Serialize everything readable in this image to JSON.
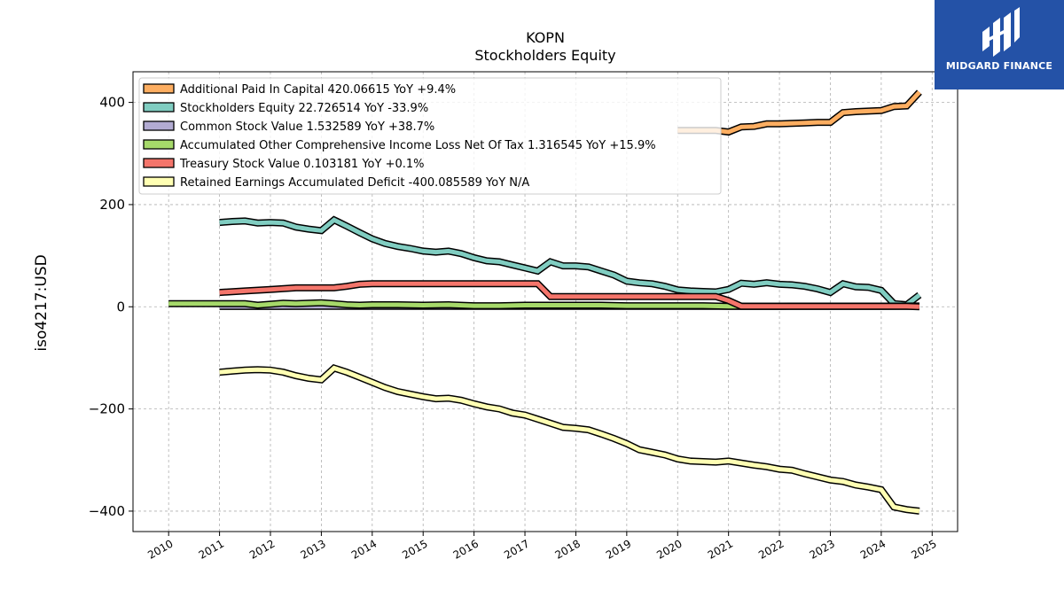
{
  "chart_data": {
    "type": "line",
    "title": "KOPN",
    "subtitle": "Stockholders  Equity",
    "ylabel": "iso4217:USD",
    "xlim": [
      2009.3,
      2025.5
    ],
    "ylim": [
      -440,
      460
    ],
    "yticks": [
      -400,
      -200,
      0,
      200,
      400
    ],
    "yticklabels": [
      "−400",
      "−200",
      "0",
      "200",
      "400"
    ],
    "xticks": [
      2010,
      2011,
      2012,
      2013,
      2014,
      2015,
      2016,
      2017,
      2018,
      2019,
      2020,
      2021,
      2022,
      2023,
      2024,
      2025
    ],
    "xticklabels": [
      "2010",
      "2011",
      "2012",
      "2013",
      "2014",
      "2015",
      "2016",
      "2017",
      "2018",
      "2019",
      "2020",
      "2021",
      "2022",
      "2023",
      "2024",
      "2025"
    ],
    "grid": true,
    "legend_position": "upper-left",
    "series": [
      {
        "name": "Additional Paid In Capital",
        "legend_label": "Additional Paid In Capital  420.06615 YoY +9.4%",
        "color": "#fdae61",
        "x": [
          2020.0,
          2020.25,
          2020.5,
          2020.75,
          2021.0,
          2021.25,
          2021.5,
          2021.75,
          2022.0,
          2022.25,
          2022.5,
          2022.75,
          2023.0,
          2023.25,
          2023.5,
          2023.75,
          2024.0,
          2024.25,
          2024.5,
          2024.75
        ],
        "values": [
          345,
          345,
          345,
          345,
          342,
          352,
          353,
          358,
          358,
          359,
          360,
          361,
          361,
          380,
          382,
          383,
          384,
          392,
          393,
          420
        ]
      },
      {
        "name": "Stockholders Equity",
        "legend_label": "Stockholders Equity  22.726514 YoY -33.9%",
        "color": "#80cdc1",
        "x": [
          2011.0,
          2011.25,
          2011.5,
          2011.75,
          2012.0,
          2012.25,
          2012.5,
          2012.75,
          2013.0,
          2013.25,
          2013.5,
          2013.75,
          2014.0,
          2014.25,
          2014.5,
          2014.75,
          2015.0,
          2015.25,
          2015.5,
          2015.75,
          2016.0,
          2016.25,
          2016.5,
          2016.75,
          2017.0,
          2017.25,
          2017.5,
          2017.75,
          2018.0,
          2018.25,
          2018.5,
          2018.75,
          2019.0,
          2019.25,
          2019.5,
          2019.75,
          2020.0,
          2020.25,
          2020.5,
          2020.75,
          2021.0,
          2021.25,
          2021.5,
          2021.75,
          2022.0,
          2022.25,
          2022.5,
          2022.75,
          2023.0,
          2023.25,
          2023.5,
          2023.75,
          2024.0,
          2024.25,
          2024.5,
          2024.75
        ],
        "values": [
          165,
          167,
          168,
          164,
          165,
          164,
          156,
          152,
          149,
          170,
          158,
          145,
          133,
          124,
          118,
          114,
          109,
          107,
          109,
          104,
          96,
          90,
          88,
          82,
          76,
          70,
          88,
          80,
          80,
          78,
          70,
          62,
          50,
          47,
          45,
          40,
          33,
          31,
          30,
          29,
          34,
          46,
          44,
          47,
          44,
          43,
          40,
          35,
          28,
          45,
          39,
          38,
          32,
          6,
          4,
          23
        ]
      },
      {
        "name": "Common Stock Value",
        "legend_label": "Common Stock Value  1.532589 YoY +38.7%",
        "color": "#b2abd2",
        "x": [
          2011.0,
          2012.0,
          2013.0,
          2014.0,
          2015.0,
          2016.0,
          2017.0,
          2018.0,
          2019.0,
          2020.0,
          2021.0,
          2022.0,
          2023.0,
          2024.0,
          2024.75
        ],
        "values": [
          0.7,
          0.7,
          0.8,
          0.8,
          0.8,
          0.8,
          0.8,
          0.8,
          0.9,
          0.9,
          0.9,
          1.0,
          1.1,
          1.1,
          1.5
        ]
      },
      {
        "name": "Accumulated Other Comprehensive Income Loss Net Of Tax",
        "legend_label": "Accumulated Other Comprehensive Income Loss Net Of Tax  1.316545 YoY +15.9%",
        "color": "#a6d96a",
        "x": [
          2010.0,
          2010.5,
          2011.0,
          2011.5,
          2011.75,
          2012.0,
          2012.25,
          2012.5,
          2012.75,
          2013.0,
          2013.25,
          2013.5,
          2013.75,
          2014.0,
          2014.5,
          2015.0,
          2015.5,
          2016.0,
          2016.5,
          2017.0,
          2017.5,
          2018.0,
          2018.5,
          2019.0,
          2019.5,
          2020.0,
          2020.5,
          2021.0,
          2021.5,
          2022.0,
          2022.5,
          2023.0,
          2023.5,
          2024.0,
          2024.5,
          2024.75
        ],
        "values": [
          6,
          6,
          6,
          6,
          3,
          5,
          7,
          6,
          7,
          8,
          6,
          4,
          3,
          4,
          4,
          3,
          4,
          2,
          2,
          3,
          3,
          3,
          3,
          2,
          2,
          2,
          2,
          1,
          1,
          1,
          1,
          1,
          1,
          1,
          1,
          1.3
        ]
      },
      {
        "name": "Treasury Stock Value",
        "legend_label": "Treasury Stock Value  0.103181 YoY +0.1%",
        "color": "#f4756b",
        "x": [
          2011.0,
          2011.5,
          2012.0,
          2012.5,
          2013.0,
          2013.25,
          2013.5,
          2013.75,
          2014.0,
          2014.5,
          2015.0,
          2015.5,
          2016.0,
          2016.5,
          2017.0,
          2017.25,
          2017.5,
          2018.0,
          2018.5,
          2019.0,
          2019.5,
          2020.0,
          2020.5,
          2020.75,
          2021.0,
          2021.25,
          2021.5,
          2022.0,
          2022.5,
          2023.0,
          2023.5,
          2024.0,
          2024.5,
          2024.75
        ],
        "values": [
          28,
          31,
          34,
          37,
          37,
          37,
          40,
          44,
          45,
          45,
          45,
          45,
          45,
          45,
          45,
          45,
          20,
          20,
          20,
          20,
          20,
          20,
          20,
          20,
          12,
          1,
          1,
          1,
          1,
          1,
          1,
          1,
          1,
          0.1
        ]
      },
      {
        "name": "Retained Earnings Accumulated Deficit",
        "legend_label": "Retained Earnings Accumulated Deficit  -400.085589 YoY N/A",
        "color": "#ffffb3",
        "x": [
          2011.0,
          2011.25,
          2011.5,
          2011.75,
          2012.0,
          2012.25,
          2012.5,
          2012.75,
          2013.0,
          2013.25,
          2013.5,
          2013.75,
          2014.0,
          2014.25,
          2014.5,
          2014.75,
          2015.0,
          2015.25,
          2015.5,
          2015.75,
          2016.0,
          2016.25,
          2016.5,
          2016.75,
          2017.0,
          2017.25,
          2017.5,
          2017.75,
          2018.0,
          2018.25,
          2018.5,
          2018.75,
          2019.0,
          2019.25,
          2019.5,
          2019.75,
          2020.0,
          2020.25,
          2020.5,
          2020.75,
          2021.0,
          2021.25,
          2021.5,
          2021.75,
          2022.0,
          2022.25,
          2022.5,
          2022.75,
          2023.0,
          2023.25,
          2023.5,
          2023.75,
          2024.0,
          2024.25,
          2024.5,
          2024.75
        ],
        "values": [
          -128,
          -126,
          -124,
          -123,
          -124,
          -128,
          -135,
          -140,
          -143,
          -120,
          -128,
          -138,
          -148,
          -158,
          -166,
          -171,
          -176,
          -180,
          -179,
          -183,
          -190,
          -196,
          -200,
          -208,
          -212,
          -220,
          -228,
          -236,
          -238,
          -241,
          -249,
          -258,
          -268,
          -280,
          -285,
          -290,
          -298,
          -302,
          -303,
          -304,
          -302,
          -306,
          -310,
          -313,
          -318,
          -320,
          -327,
          -333,
          -339,
          -342,
          -349,
          -353,
          -358,
          -392,
          -397,
          -400
        ]
      }
    ]
  },
  "logo": {
    "text": "MIDGARD FINANCE",
    "color": "#2452a7"
  }
}
